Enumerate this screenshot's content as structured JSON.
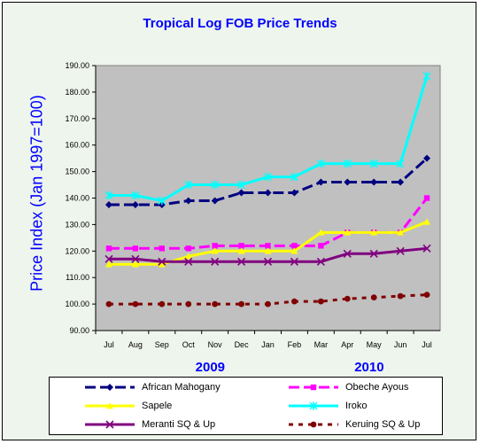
{
  "chart_data": {
    "type": "line",
    "title": "Tropical Log FOB Price Trends",
    "ylabel": "Price Index (Jan 1997=100)",
    "xlabel": "",
    "ylim": [
      90,
      190
    ],
    "yticks": [
      "90.00",
      "100.00",
      "110.00",
      "120.00",
      "130.00",
      "140.00",
      "150.00",
      "160.00",
      "170.00",
      "180.00",
      "190.00"
    ],
    "categories": [
      "Jul",
      "Aug",
      "Sep",
      "Oct",
      "Nov",
      "Dec",
      "Jan",
      "Feb",
      "Mar",
      "Apr",
      "May",
      "Jun",
      "Jul"
    ],
    "year_labels": [
      {
        "text": "2009",
        "month": "Nov"
      },
      {
        "text": "2010",
        "month": "May"
      }
    ],
    "grid": false,
    "legend": "bottom",
    "series": [
      {
        "name": "African Mahogany",
        "color": "#000080",
        "dash": "12,5",
        "marker": "diamond",
        "values": [
          137.5,
          137.5,
          137.5,
          139,
          139,
          142,
          142,
          142,
          146,
          146,
          146,
          146,
          155
        ]
      },
      {
        "name": "Obeche Ayous",
        "color": "#ff00ff",
        "dash": "12,5",
        "marker": "square",
        "values": [
          121,
          121,
          121,
          121,
          122,
          122,
          122,
          122,
          122,
          127,
          127,
          127,
          140
        ]
      },
      {
        "name": "Sapele",
        "color": "#ffff00",
        "dash": "",
        "marker": "triangle",
        "values": [
          115,
          115,
          115,
          118,
          120,
          120,
          120,
          120,
          127,
          127,
          127,
          127,
          131
        ]
      },
      {
        "name": "Iroko",
        "color": "#00ffff",
        "dash": "",
        "marker": "star",
        "values": [
          141,
          141,
          139,
          145,
          145,
          145,
          148,
          148,
          153,
          153,
          153,
          153,
          186
        ]
      },
      {
        "name": "Meranti SQ & Up",
        "color": "#800080",
        "dash": "",
        "marker": "x",
        "values": [
          117,
          117,
          116,
          116,
          116,
          116,
          116,
          116,
          116,
          119,
          119,
          120,
          121
        ]
      },
      {
        "name": "Keruing SQ & Up",
        "color": "#800000",
        "dash": "5,6",
        "marker": "circle",
        "values": [
          100,
          100,
          100,
          100,
          100,
          100,
          100,
          101,
          101,
          102,
          102.5,
          103,
          103.5
        ]
      }
    ]
  }
}
